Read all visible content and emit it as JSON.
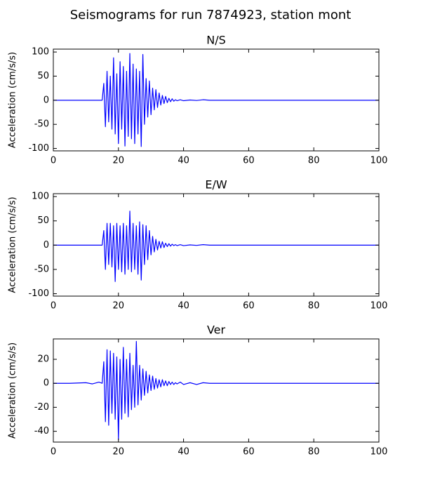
{
  "title": "Seismograms for run 7874923, station mont",
  "chart_data": [
    {
      "type": "line",
      "title": "N/S",
      "y_label": "Acceleration (cm/s/s)",
      "color": "#0000ff",
      "x": [
        0,
        5,
        10,
        12,
        14,
        15,
        15.5,
        16,
        16.5,
        17,
        17.5,
        18,
        18.5,
        19,
        19.5,
        20,
        20.5,
        21,
        21.5,
        22,
        22.5,
        23,
        23.5,
        24,
        24.5,
        25,
        25.5,
        26,
        26.5,
        27,
        27.5,
        28,
        28.5,
        29,
        29.5,
        30,
        30.5,
        31,
        31.5,
        32,
        32.5,
        33,
        33.5,
        34,
        34.5,
        35,
        35.5,
        36,
        36.5,
        37,
        37.5,
        38,
        39,
        40,
        42,
        44,
        46,
        48,
        50,
        60,
        70,
        80,
        90,
        100
      ],
      "values": [
        0,
        0,
        0,
        0,
        0,
        0,
        35,
        -55,
        60,
        -45,
        50,
        -60,
        88,
        -70,
        55,
        -90,
        80,
        -60,
        70,
        -95,
        60,
        -75,
        97,
        -80,
        75,
        -90,
        65,
        -70,
        60,
        -96,
        95,
        -50,
        45,
        -35,
        40,
        -30,
        25,
        -20,
        22,
        -15,
        15,
        -10,
        10,
        -7,
        8,
        -5,
        4,
        -3,
        3,
        -2,
        1,
        -1,
        1,
        -1,
        0.5,
        -0.5,
        1,
        0,
        0,
        0,
        0,
        0,
        0,
        0
      ],
      "xlim": [
        0,
        100
      ],
      "xticks": [
        0,
        20,
        40,
        60,
        80,
        100
      ],
      "ylim": [
        -105,
        106
      ],
      "yticks": [
        -100,
        -50,
        0,
        50,
        100
      ]
    },
    {
      "type": "line",
      "title": "E/W",
      "y_label": "Acceleration (cm/s/s)",
      "color": "#0000ff",
      "x": [
        0,
        5,
        10,
        12,
        14,
        15,
        15.5,
        16,
        16.5,
        17,
        17.5,
        18,
        18.5,
        19,
        19.5,
        20,
        20.5,
        21,
        21.5,
        22,
        22.5,
        23,
        23.5,
        24,
        24.5,
        25,
        25.5,
        26,
        26.5,
        27,
        27.5,
        28,
        28.5,
        29,
        29.5,
        30,
        30.5,
        31,
        31.5,
        32,
        32.5,
        33,
        33.5,
        34,
        34.5,
        35,
        35.5,
        36,
        36.5,
        37,
        37.5,
        38,
        39,
        40,
        42,
        44,
        46,
        48,
        50,
        60,
        70,
        80,
        90,
        100
      ],
      "values": [
        0,
        0,
        0,
        0,
        0,
        0,
        30,
        -50,
        45,
        -40,
        45,
        -45,
        40,
        -75,
        45,
        -50,
        40,
        -55,
        45,
        -60,
        40,
        -50,
        70,
        -55,
        45,
        -50,
        40,
        -60,
        48,
        -72,
        42,
        -40,
        40,
        -30,
        30,
        -20,
        18,
        -14,
        12,
        -10,
        8,
        -6,
        7,
        -5,
        4,
        -3,
        3,
        -2,
        2,
        -1,
        1,
        -1,
        1,
        -1,
        0.5,
        -0.5,
        1,
        0,
        0,
        0,
        0,
        0,
        0,
        0
      ],
      "xlim": [
        0,
        100
      ],
      "xticks": [
        0,
        20,
        40,
        60,
        80,
        100
      ],
      "ylim": [
        -105,
        106
      ],
      "yticks": [
        -100,
        -50,
        0,
        50,
        100
      ]
    },
    {
      "type": "line",
      "title": "Ver",
      "y_label": "Acceleration (cm/s/s)",
      "color": "#0000ff",
      "x": [
        0,
        5,
        10,
        12,
        14,
        15,
        15.5,
        16,
        16.5,
        17,
        17.5,
        18,
        18.5,
        19,
        19.5,
        20,
        20.5,
        21,
        21.5,
        22,
        22.5,
        23,
        23.5,
        24,
        24.5,
        25,
        25.5,
        26,
        26.5,
        27,
        27.5,
        28,
        28.5,
        29,
        29.5,
        30,
        30.5,
        31,
        31.5,
        32,
        32.5,
        33,
        33.5,
        34,
        34.5,
        35,
        35.5,
        36,
        36.5,
        37,
        37.5,
        38,
        39,
        40,
        42,
        44,
        46,
        48,
        50,
        60,
        70,
        80,
        90,
        100
      ],
      "values": [
        0,
        0,
        0.5,
        -0.5,
        1,
        0,
        18,
        -32,
        28,
        -35,
        27,
        -25,
        25,
        -30,
        22,
        -47,
        20,
        -30,
        30,
        -25,
        20,
        -28,
        25,
        -22,
        15,
        -20,
        35,
        -18,
        15,
        -14,
        12,
        -10,
        10,
        -8,
        7,
        -6,
        6,
        -5,
        4,
        -4,
        3,
        -3,
        3,
        -2,
        2,
        -2,
        1.5,
        -1,
        1,
        -1,
        0.5,
        -0.5,
        1,
        -1,
        0.5,
        -1,
        0.5,
        0,
        0,
        0,
        0,
        0,
        0,
        0
      ],
      "xlim": [
        0,
        100
      ],
      "xticks": [
        0,
        20,
        40,
        60,
        80,
        100
      ],
      "ylim": [
        -49,
        37
      ],
      "yticks": [
        -40,
        -20,
        0,
        20
      ]
    }
  ]
}
